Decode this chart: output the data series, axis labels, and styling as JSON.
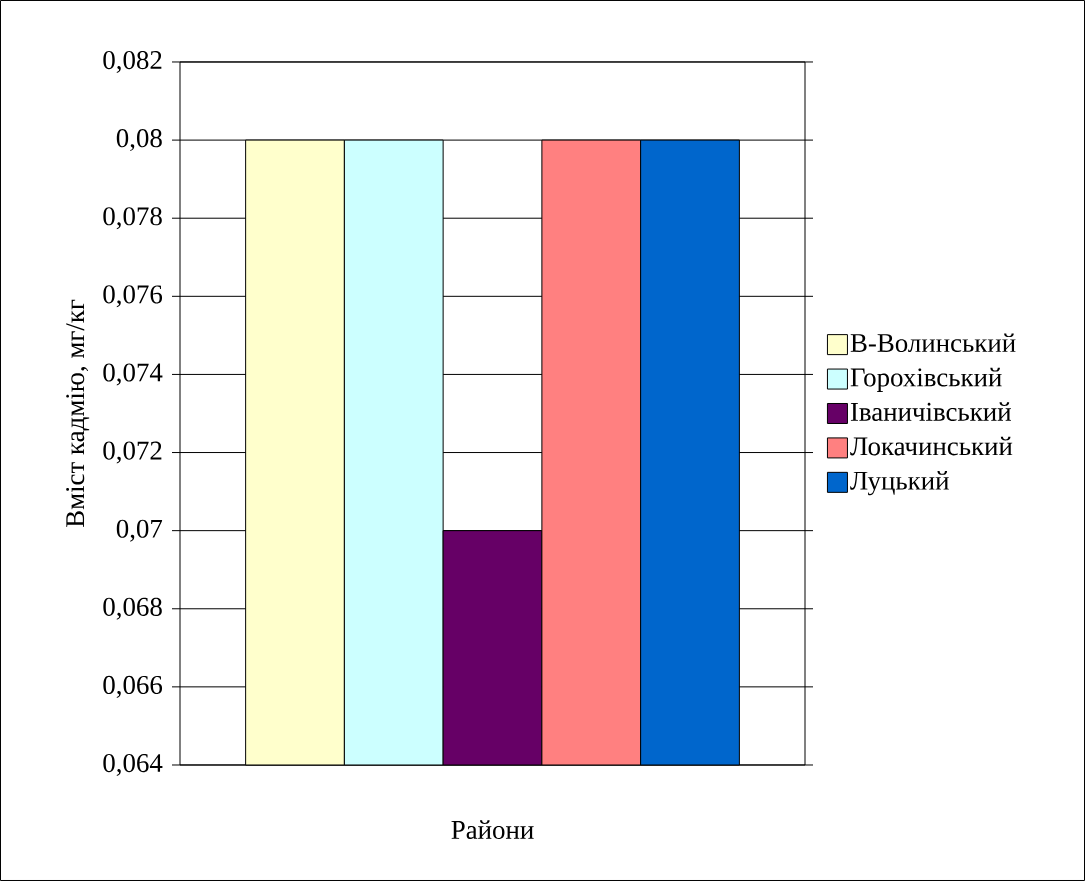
{
  "chart_data": {
    "type": "bar",
    "ylabel": "Вміст кадмію, мг/кг",
    "xlabel": "Райони",
    "categories": [
      null
    ],
    "series": [
      {
        "name": "В-Волинський",
        "color": "#ffffcc",
        "values": [
          0.08
        ]
      },
      {
        "name": "Горохівський",
        "color": "#ccffff",
        "values": [
          0.08
        ]
      },
      {
        "name": "Іваничівський",
        "color": "#660066",
        "values": [
          0.07
        ]
      },
      {
        "name": "Локачинський",
        "color": "#ff8080",
        "values": [
          0.08
        ]
      },
      {
        "name": "Луцький",
        "color": "#0066cc",
        "values": [
          0.08
        ]
      }
    ],
    "ylim": [
      0.064,
      0.082
    ],
    "yticks": [
      {
        "value": 0.064,
        "label": "0,064"
      },
      {
        "value": 0.066,
        "label": "0,066"
      },
      {
        "value": 0.068,
        "label": "0,068"
      },
      {
        "value": 0.07,
        "label": "0,07"
      },
      {
        "value": 0.072,
        "label": "0,072"
      },
      {
        "value": 0.074,
        "label": "0,074"
      },
      {
        "value": 0.076,
        "label": "0,076"
      },
      {
        "value": 0.078,
        "label": "0,078"
      },
      {
        "value": 0.08,
        "label": "0,08"
      },
      {
        "value": 0.082,
        "label": "0,082"
      }
    ],
    "grid": "y",
    "legend": "right"
  }
}
